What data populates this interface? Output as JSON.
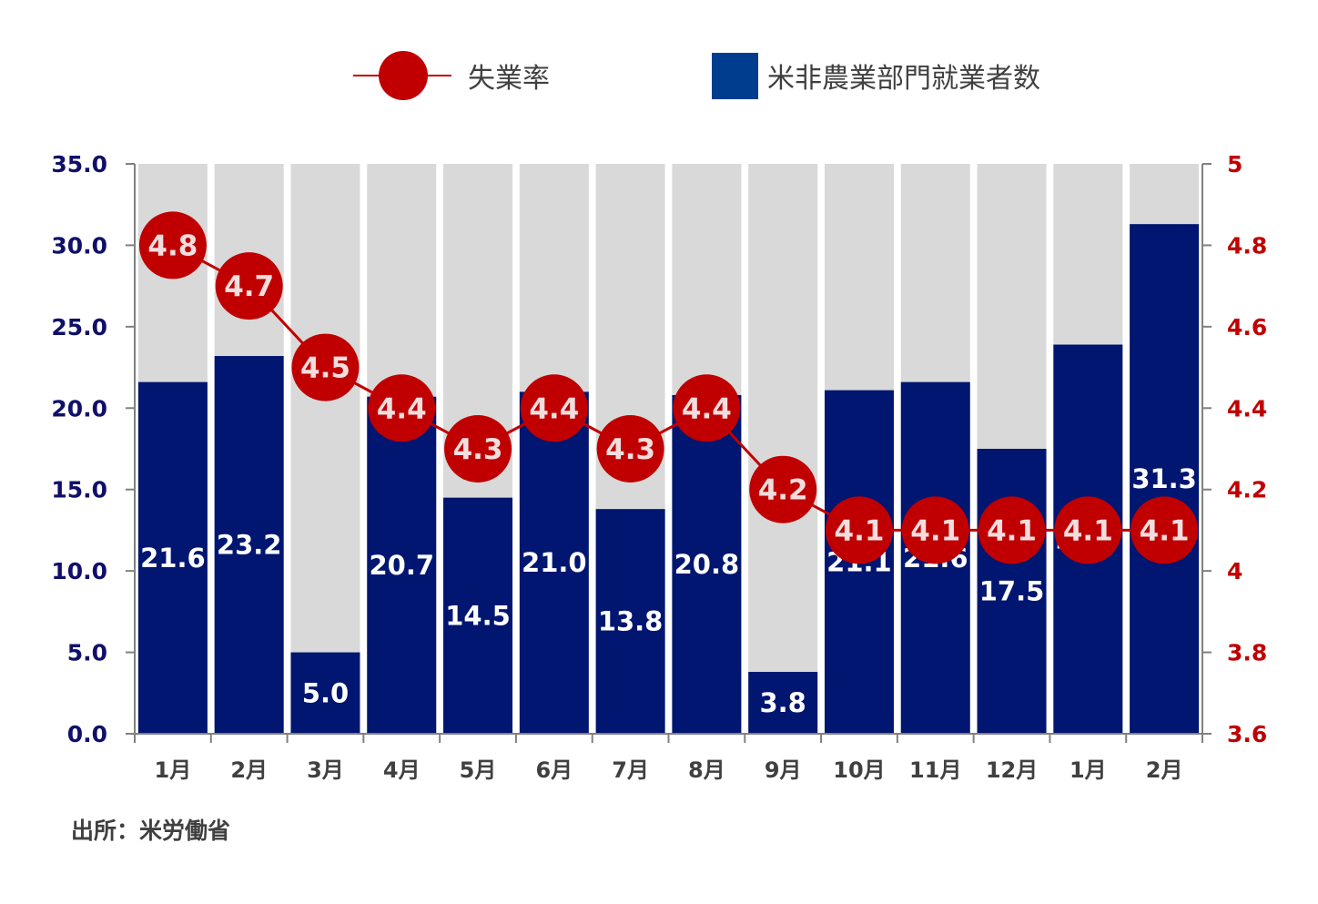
{
  "chart_data": {
    "type": "bar",
    "categories": [
      "1月",
      "2月",
      "3月",
      "4月",
      "5月",
      "6月",
      "7月",
      "8月",
      "9月",
      "10月",
      "11月",
      "12月",
      "1月",
      "2月"
    ],
    "series": [
      {
        "name": "米非農業部門就業者数",
        "type": "bar",
        "axis": "left",
        "values": [
          21.6,
          23.2,
          5.0,
          20.7,
          14.5,
          21.0,
          13.8,
          20.8,
          3.8,
          21.1,
          21.6,
          17.5,
          23.9,
          31.3
        ],
        "labels": [
          "21.6",
          "23.2",
          "5.0",
          "20.7",
          "14.5",
          "21.0",
          "13.8",
          "20.8",
          "3.8",
          "21.1",
          "21.6",
          "17.5",
          "23.9",
          "31.3"
        ]
      },
      {
        "name": "失業率",
        "type": "line",
        "axis": "right",
        "values": [
          4.8,
          4.7,
          4.5,
          4.4,
          4.3,
          4.4,
          4.3,
          4.4,
          4.2,
          4.1,
          4.1,
          4.1,
          4.1,
          4.1
        ],
        "labels": [
          "4.8",
          "4.7",
          "4.5",
          "4.4",
          "4.3",
          "4.4",
          "4.3",
          "4.4",
          "4.2",
          "4.1",
          "4.1",
          "4.1",
          "4.1",
          "4.1"
        ]
      }
    ],
    "y_left": {
      "ylim": [
        0,
        35
      ],
      "ticks": [
        "0.0",
        "5.0",
        "10.0",
        "15.0",
        "20.0",
        "25.0",
        "30.0",
        "35.0"
      ]
    },
    "y_right": {
      "ylim": [
        3.6,
        5.0
      ],
      "ticks": [
        "3.6",
        "3.8",
        "4",
        "4.2",
        "4.4",
        "4.6",
        "4.8",
        "5"
      ]
    },
    "legend": {
      "position": "top",
      "line_label": "失業率",
      "bar_label": "米非農業部門就業者数"
    },
    "source": "出所：米労働省",
    "colors": {
      "bar": "#001670",
      "bar_bg": "#d9d9d9",
      "line": "#c00000",
      "left_axis_text": "#10106a",
      "right_axis_text": "#c00000",
      "bar_legend": "#003d8f"
    }
  }
}
